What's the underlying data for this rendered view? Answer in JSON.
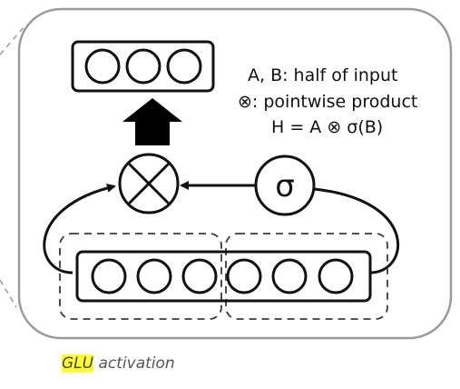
{
  "legend": {
    "line1": "A, B: half of input",
    "line2": "⊗: pointwise product",
    "line3": "H = A ⊗ σ(B)"
  },
  "gate": {
    "symbol": "σ",
    "operator_icon": "circled-times-icon",
    "output_arrow_icon": "thick-up-arrow-icon"
  },
  "caption": {
    "highlight": "GLU",
    "rest": " activation"
  },
  "colors": {
    "stroke": "#111111",
    "panel_border": "#9a9a9a",
    "dashed": "#3a3a3a",
    "highlight": "#ffff33",
    "caption_text": "#555555"
  }
}
